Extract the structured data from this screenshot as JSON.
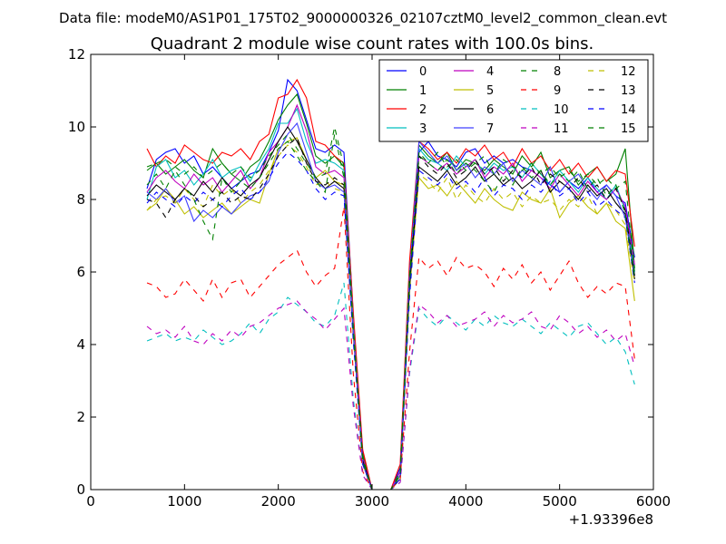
{
  "chart_data": {
    "type": "line",
    "suptitle": "Data file: modeM0/AS1P01_175T02_9000000326_02107cztM0_level2_common_clean.evt",
    "title": "Quadrant 2 module wise count rates with 100.0s bins.",
    "xlabel": "",
    "ylabel": "",
    "x_offset_label": "+1.93396e8",
    "xlim": [
      0,
      6000
    ],
    "ylim": [
      0,
      12
    ],
    "xticks": [
      "0",
      "1000",
      "2000",
      "3000",
      "4000",
      "5000",
      "6000"
    ],
    "yticks": [
      "0",
      "2",
      "4",
      "6",
      "8",
      "10",
      "12"
    ],
    "grid": false,
    "legend_position": "top-right",
    "legend_columns": 4,
    "x": [
      600,
      700,
      800,
      900,
      1000,
      1100,
      1200,
      1300,
      1400,
      1500,
      1600,
      1700,
      1800,
      1900,
      2000,
      2100,
      2200,
      2300,
      2400,
      2500,
      2600,
      2700,
      2800,
      2900,
      3000,
      3100,
      3200,
      3300,
      3400,
      3500,
      3600,
      3700,
      3800,
      3900,
      4000,
      4100,
      4200,
      4300,
      4400,
      4500,
      4600,
      4700,
      4800,
      4900,
      5000,
      5100,
      5200,
      5300,
      5400,
      5500,
      5600,
      5700,
      5800
    ],
    "series": [
      {
        "name": "0",
        "color": "#0000ff",
        "dash": "solid",
        "values": [
          8.3,
          9.1,
          9.3,
          9.4,
          9.0,
          9.2,
          8.7,
          8.9,
          8.6,
          8.3,
          8.5,
          8.7,
          8.8,
          9.3,
          9.9,
          11.3,
          11.0,
          10.2,
          9.4,
          9.3,
          9.5,
          9.3,
          4.8,
          0.9,
          0,
          0,
          0,
          0.6,
          6.0,
          9.3,
          9.6,
          9.2,
          9.1,
          8.9,
          9.3,
          9.4,
          9.0,
          9.2,
          9.0,
          9.1,
          8.9,
          8.8,
          8.6,
          8.4,
          8.2,
          8.5,
          8.3,
          8.6,
          8.2,
          8.4,
          8.1,
          7.9,
          6.4
        ]
      },
      {
        "name": "1",
        "color": "#008000",
        "dash": "solid",
        "values": [
          8.8,
          9.0,
          8.7,
          8.9,
          9.1,
          8.8,
          8.6,
          9.4,
          9.0,
          8.7,
          8.5,
          8.9,
          9.1,
          9.6,
          10.2,
          10.6,
          10.9,
          10.1,
          9.2,
          9.0,
          9.2,
          8.9,
          4.7,
          1.0,
          0,
          0,
          0,
          0.5,
          5.8,
          9.5,
          9.2,
          9.0,
          9.3,
          8.8,
          9.1,
          9.0,
          8.8,
          9.1,
          8.9,
          8.7,
          9.2,
          8.9,
          9.3,
          8.6,
          8.8,
          8.9,
          8.4,
          8.7,
          8.9,
          8.5,
          8.7,
          9.4,
          6.1
        ]
      },
      {
        "name": "2",
        "color": "#ff0000",
        "dash": "solid",
        "values": [
          9.4,
          8.9,
          9.2,
          9.0,
          9.5,
          9.3,
          9.1,
          9.0,
          9.3,
          9.2,
          9.4,
          9.1,
          9.6,
          9.8,
          10.8,
          10.9,
          11.3,
          10.8,
          9.6,
          9.5,
          9.2,
          9.0,
          4.9,
          1.1,
          0,
          0,
          0,
          0.7,
          6.3,
          9.6,
          9.4,
          9.1,
          9.3,
          9.0,
          9.4,
          9.2,
          9.5,
          9.1,
          9.3,
          8.9,
          9.4,
          9.0,
          9.2,
          8.8,
          9.1,
          8.7,
          9.0,
          8.6,
          8.9,
          8.5,
          8.8,
          8.7,
          6.7
        ]
      },
      {
        "name": "3",
        "color": "#00bfbf",
        "dash": "solid",
        "values": [
          8.0,
          8.9,
          9.1,
          8.6,
          8.8,
          8.4,
          8.7,
          9.1,
          8.6,
          8.8,
          8.9,
          8.5,
          9.0,
          9.4,
          10.1,
          10.1,
          10.5,
          9.6,
          9.0,
          9.1,
          9.0,
          8.8,
          4.6,
          0.8,
          0,
          0,
          0,
          0.4,
          5.9,
          9.4,
          9.1,
          9.0,
          8.8,
          9.2,
          8.9,
          9.1,
          8.7,
          9.0,
          8.8,
          8.9,
          8.6,
          9.0,
          8.7,
          8.4,
          8.8,
          8.5,
          8.2,
          8.6,
          8.3,
          8.0,
          8.4,
          7.7,
          6.0
        ]
      },
      {
        "name": "4",
        "color": "#bf00bf",
        "dash": "solid",
        "values": [
          8.2,
          8.6,
          8.8,
          8.5,
          8.3,
          8.7,
          8.4,
          8.6,
          8.2,
          8.5,
          8.8,
          8.3,
          8.6,
          9.3,
          9.6,
          10.0,
          10.6,
          9.9,
          8.9,
          8.7,
          8.8,
          8.6,
          4.5,
          0.9,
          0,
          0,
          0,
          0.5,
          5.7,
          9.2,
          9.0,
          8.8,
          9.0,
          8.7,
          8.9,
          9.1,
          8.6,
          8.9,
          8.7,
          9.0,
          8.5,
          8.8,
          8.6,
          8.3,
          8.7,
          8.4,
          8.1,
          8.5,
          8.2,
          8.0,
          8.3,
          7.8,
          6.2
        ]
      },
      {
        "name": "5",
        "color": "#bfbf00",
        "dash": "solid",
        "values": [
          7.7,
          7.9,
          8.3,
          8.0,
          7.6,
          7.8,
          7.5,
          7.7,
          7.9,
          7.6,
          7.8,
          8.0,
          7.9,
          8.7,
          9.4,
          9.6,
          9.7,
          9.1,
          8.6,
          8.8,
          8.5,
          8.4,
          4.4,
          0.7,
          0,
          0,
          0,
          0.3,
          5.5,
          8.6,
          8.3,
          8.4,
          8.1,
          8.5,
          8.2,
          7.9,
          8.3,
          8.0,
          7.8,
          7.7,
          8.2,
          8.0,
          7.9,
          8.3,
          7.5,
          7.9,
          8.1,
          7.8,
          7.6,
          7.9,
          7.4,
          7.2,
          5.2
        ]
      },
      {
        "name": "6",
        "color": "#000000",
        "dash": "solid",
        "values": [
          8.1,
          8.4,
          8.2,
          8.0,
          8.3,
          8.1,
          8.5,
          8.2,
          8.6,
          8.3,
          8.1,
          8.4,
          8.6,
          9.1,
          9.6,
          10.0,
          9.6,
          9.1,
          8.6,
          8.3,
          8.5,
          8.3,
          4.3,
          0.8,
          0,
          0,
          0,
          0.3,
          5.6,
          8.9,
          8.7,
          8.5,
          8.8,
          8.4,
          8.6,
          8.9,
          8.5,
          8.7,
          8.4,
          8.6,
          8.3,
          8.5,
          8.8,
          8.2,
          8.5,
          8.3,
          8.0,
          8.4,
          8.1,
          8.3,
          7.9,
          7.6,
          5.8
        ]
      },
      {
        "name": "7",
        "color": "#4040ff",
        "dash": "solid",
        "values": [
          8.2,
          8.0,
          8.3,
          7.9,
          8.1,
          7.4,
          7.7,
          7.5,
          7.8,
          7.6,
          7.9,
          8.1,
          8.2,
          8.5,
          9.3,
          9.8,
          10.1,
          9.3,
          8.5,
          8.3,
          8.4,
          8.2,
          4.4,
          0.7,
          0,
          0,
          0,
          0.4,
          5.9,
          9.6,
          9.3,
          9.0,
          9.2,
          8.8,
          9.0,
          8.6,
          8.9,
          8.7,
          9.0,
          8.5,
          8.8,
          8.6,
          8.4,
          8.9,
          8.2,
          8.5,
          8.7,
          8.3,
          8.0,
          8.4,
          8.1,
          7.5,
          5.9
        ]
      },
      {
        "name": "8",
        "color": "#008000",
        "dash": "dashed",
        "values": [
          8.9,
          9.0,
          9.1,
          8.9,
          8.7,
          8.9,
          8.6,
          8.8,
          9.0,
          8.7,
          8.9,
          8.6,
          8.8,
          9.2,
          9.5,
          9.8,
          9.4,
          9.0,
          8.6,
          8.7,
          10.0,
          8.9,
          4.5,
          0.9,
          0,
          0,
          0,
          0.5,
          5.9,
          9.2,
          9.0,
          9.3,
          8.9,
          9.1,
          8.8,
          9.0,
          9.2,
          8.7,
          9.1,
          8.9,
          8.8,
          9.0,
          8.7,
          8.9,
          8.6,
          8.8,
          8.5,
          8.7,
          8.4,
          8.6,
          8.3,
          8.5,
          6.0
        ]
      },
      {
        "name": "9",
        "color": "#ff0000",
        "dash": "dashed",
        "values": [
          5.7,
          5.6,
          5.3,
          5.4,
          5.8,
          5.5,
          5.2,
          5.8,
          5.3,
          5.7,
          5.8,
          5.3,
          5.6,
          5.9,
          6.2,
          6.4,
          6.6,
          6.0,
          5.6,
          5.9,
          6.1,
          7.8,
          3.2,
          0.5,
          0,
          0,
          0,
          0.3,
          3.8,
          6.4,
          6.1,
          6.3,
          5.9,
          6.4,
          6.1,
          6.2,
          6.0,
          5.6,
          6.1,
          5.8,
          6.2,
          5.7,
          6.0,
          5.5,
          5.9,
          6.3,
          5.7,
          5.3,
          5.6,
          5.4,
          5.7,
          5.6,
          3.6
        ]
      },
      {
        "name": "10",
        "color": "#00bfbf",
        "dash": "dashed",
        "values": [
          4.1,
          4.2,
          4.3,
          4.1,
          4.2,
          4.1,
          4.4,
          4.2,
          4.0,
          4.1,
          4.3,
          4.6,
          4.3,
          4.7,
          4.9,
          5.3,
          5.1,
          4.9,
          4.6,
          4.5,
          4.8,
          5.7,
          2.5,
          0.4,
          0,
          0,
          0,
          0.2,
          3.2,
          5.0,
          4.7,
          4.5,
          4.8,
          4.6,
          4.4,
          4.7,
          4.5,
          4.8,
          4.6,
          4.5,
          4.7,
          4.5,
          4.3,
          4.6,
          4.4,
          4.2,
          4.5,
          4.6,
          4.3,
          4.0,
          4.2,
          3.8,
          2.9
        ]
      },
      {
        "name": "11",
        "color": "#bf00bf",
        "dash": "dashed",
        "values": [
          4.5,
          4.3,
          4.4,
          4.2,
          4.5,
          4.1,
          4.0,
          4.3,
          4.1,
          4.4,
          4.2,
          4.5,
          4.6,
          4.8,
          5.0,
          5.1,
          5.2,
          4.9,
          4.7,
          4.4,
          4.7,
          5.0,
          2.3,
          0.4,
          0,
          0,
          0,
          0.2,
          3.3,
          5.1,
          4.9,
          4.6,
          4.8,
          4.5,
          4.6,
          4.7,
          4.9,
          4.5,
          4.8,
          4.6,
          4.7,
          4.9,
          4.5,
          4.4,
          4.8,
          4.6,
          4.3,
          4.5,
          4.2,
          4.4,
          4.1,
          4.3,
          3.4
        ]
      },
      {
        "name": "12",
        "color": "#bfbf00",
        "dash": "dashed",
        "values": [
          7.7,
          8.0,
          8.1,
          7.9,
          8.3,
          8.0,
          7.8,
          8.4,
          8.1,
          8.3,
          7.9,
          8.2,
          8.4,
          8.8,
          9.2,
          9.5,
          9.3,
          8.9,
          8.4,
          8.5,
          8.3,
          8.2,
          4.2,
          0.7,
          0,
          0,
          0,
          0.3,
          5.4,
          8.7,
          8.5,
          8.2,
          8.6,
          8.0,
          8.4,
          8.1,
          7.9,
          8.3,
          8.0,
          8.2,
          7.8,
          8.1,
          7.9,
          8.0,
          7.7,
          8.0,
          7.8,
          8.1,
          7.6,
          7.9,
          7.7,
          7.3,
          5.7
        ]
      },
      {
        "name": "13",
        "color": "#000000",
        "dash": "dashed",
        "values": [
          8.0,
          7.9,
          7.5,
          8.0,
          8.3,
          8.1,
          7.8,
          8.0,
          8.2,
          7.9,
          8.1,
          8.0,
          8.3,
          8.7,
          9.2,
          9.5,
          9.7,
          9.0,
          8.5,
          8.4,
          8.6,
          8.4,
          4.3,
          0.8,
          0,
          0,
          0,
          0.4,
          5.6,
          9.2,
          8.9,
          8.7,
          9.0,
          8.6,
          8.8,
          9.1,
          8.7,
          8.9,
          8.5,
          8.8,
          8.6,
          8.9,
          8.4,
          8.7,
          8.5,
          8.3,
          8.6,
          8.2,
          8.4,
          8.0,
          8.3,
          7.7,
          5.9
        ]
      },
      {
        "name": "14",
        "color": "#0000ff",
        "dash": "dashed",
        "values": [
          7.9,
          8.2,
          8.0,
          7.8,
          8.1,
          7.9,
          8.2,
          8.0,
          7.8,
          8.1,
          8.3,
          8.0,
          8.2,
          8.6,
          9.0,
          9.3,
          9.1,
          8.8,
          8.3,
          8.0,
          8.2,
          8.1,
          4.1,
          0.7,
          0,
          0,
          0,
          0.3,
          5.3,
          8.8,
          8.6,
          8.4,
          8.7,
          8.3,
          8.5,
          8.2,
          8.6,
          8.1,
          8.4,
          8.3,
          8.0,
          8.4,
          8.2,
          8.5,
          8.1,
          8.3,
          7.9,
          8.2,
          7.8,
          8.0,
          7.7,
          7.5,
          5.7
        ]
      },
      {
        "name": "15",
        "color": "#008000",
        "dash": "dashed",
        "values": [
          8.4,
          8.7,
          8.3,
          8.8,
          8.4,
          8.0,
          7.4,
          6.9,
          8.6,
          8.2,
          8.5,
          8.3,
          8.6,
          9.0,
          9.4,
          9.6,
          9.2,
          8.8,
          8.5,
          8.2,
          9.8,
          8.6,
          4.4,
          0.8,
          0,
          0,
          0,
          0.4,
          5.7,
          9.3,
          9.0,
          8.8,
          9.1,
          8.7,
          9.0,
          8.8,
          8.5,
          8.2,
          8.7,
          8.4,
          8.9,
          8.6,
          8.8,
          8.4,
          8.7,
          8.5,
          8.8,
          8.3,
          8.6,
          8.1,
          8.4,
          7.6,
          5.8
        ]
      }
    ]
  }
}
